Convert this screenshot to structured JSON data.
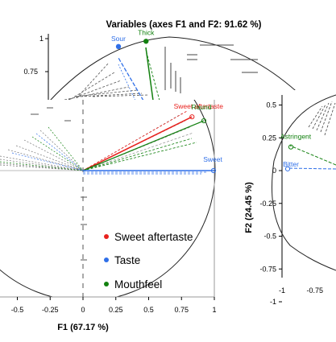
{
  "colors": {
    "sweet_aftertaste": "#e8211d",
    "taste": "#2f6fe8",
    "mouthfeel": "#12800f",
    "circle": "#222222"
  },
  "chart_data": [
    {
      "type": "scatter",
      "title": "Variables (axes F1 and F2: 91.62 %)",
      "ylim": [
        0.6,
        1.05
      ],
      "yticks": [
        "1",
        "0.75"
      ],
      "series": [
        {
          "name": "Taste",
          "points": [
            {
              "label": "Sour",
              "x": 0.27,
              "y": 0.94
            }
          ]
        },
        {
          "name": "Mouthfeel",
          "points": [
            {
              "label": "Thick",
              "x": 0.48,
              "y": 0.98
            }
          ]
        }
      ]
    },
    {
      "type": "scatter",
      "xlabel": "F1 (67.17 %)",
      "xlim": [
        -0.6,
        1.0
      ],
      "xticks": [
        "-0.5",
        "-0.25",
        "0",
        "0.25",
        "0.5",
        "0.75",
        "1"
      ],
      "legend": [
        "Sweet aftertaste",
        "Taste",
        "Mouthfeel"
      ],
      "series": [
        {
          "name": "Sweet aftertaste",
          "points": [
            {
              "label": "Sweet aftertaste",
              "x": 0.83,
              "y": 0.41
            }
          ]
        },
        {
          "name": "Taste",
          "points": [
            {
              "label": "Sweet",
              "x": 1.0,
              "y": 0.0
            }
          ]
        },
        {
          "name": "Mouthfeel",
          "points": [
            {
              "label": "Round",
              "x": 0.92,
              "y": 0.38
            }
          ]
        }
      ]
    },
    {
      "type": "scatter",
      "ylabel": "F2 (24.45 %)",
      "ylim": [
        -1.0,
        0.5
      ],
      "xlim": [
        -1.0,
        -0.4
      ],
      "yticks": [
        "0.5",
        "0.25",
        "0",
        "-0.25",
        "-0.5",
        "-0.75",
        "-1"
      ],
      "xticks": [
        "-1",
        "-0.75"
      ],
      "series": [
        {
          "name": "Mouthfeel",
          "points": [
            {
              "label": "Astringent",
              "x": -0.87,
              "y": 0.18
            }
          ]
        },
        {
          "name": "Taste",
          "points": [
            {
              "label": "Bitter",
              "x": -0.91,
              "y": 0.05
            }
          ]
        }
      ]
    }
  ]
}
